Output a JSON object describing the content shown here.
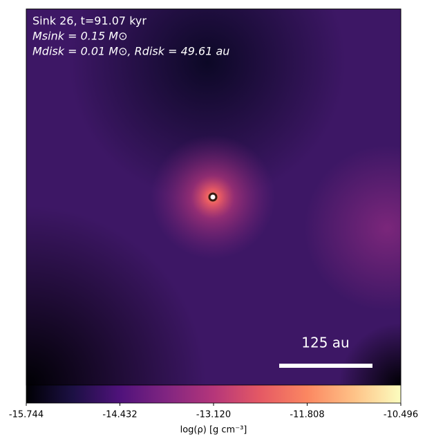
{
  "chart_data": {
    "type": "heatmap",
    "annotations": [
      "Sink 26, t=91.07 kyr",
      "Msink = 0.15 M⊙",
      "Mdisk = 0.01 M⊙, Rdisk = 49.61 au"
    ],
    "scale_bar": "125 au",
    "colorbar_label": "log(ρ) [g cm⁻³]",
    "clim": [
      -15.744,
      -10.496
    ],
    "cticks": [
      -15.744,
      -14.432,
      {
        "value": -13.12,
        "label": "-13.120"
      },
      -11.808,
      -10.496
    ],
    "colormap": [
      "#000004",
      "#1c1044",
      "#4f127b",
      "#812581",
      "#b5367a",
      "#e55964",
      "#fb8761",
      "#fec287",
      "#fcfdbf"
    ]
  }
}
